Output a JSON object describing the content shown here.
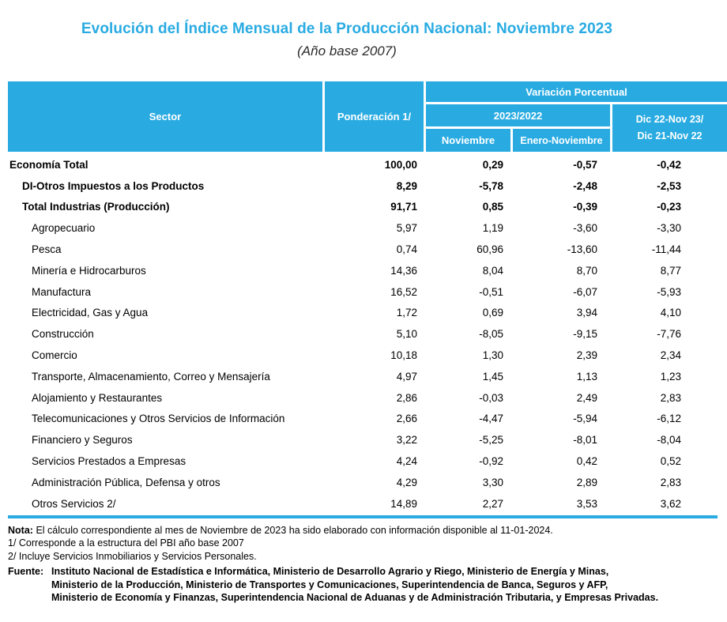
{
  "page": {
    "title": "Evolución del Índice Mensual de la Producción Nacional: Noviembre 2023",
    "subtitle": "(Año base 2007)"
  },
  "colors": {
    "accent": "#29ABE2",
    "header_text": "#FFFFFF",
    "body_text": "#000000"
  },
  "table": {
    "headers": {
      "sector": "Sector",
      "ponderacion": "Ponderación 1/",
      "variacion": "Variación Porcentual",
      "period": "2023/2022",
      "noviembre": "Noviembre",
      "enero_noviembre": "Enero-Noviembre",
      "dic_line1": "Dic 22-Nov 23/",
      "dic_line2": "Dic 21-Nov 22"
    },
    "rows": [
      {
        "sector": "Economía Total",
        "ponderacion": "100,00",
        "noviembre": "0,29",
        "enero_noviembre": "-0,57",
        "dic": "-0,42",
        "bold": true,
        "indent": 0
      },
      {
        "sector": "DI-Otros Impuestos a los Productos",
        "ponderacion": "8,29",
        "noviembre": "-5,78",
        "enero_noviembre": "-2,48",
        "dic": "-2,53",
        "bold": true,
        "indent": 1
      },
      {
        "sector": "Total  Industrias (Producción)",
        "ponderacion": "91,71",
        "noviembre": "0,85",
        "enero_noviembre": "-0,39",
        "dic": "-0,23",
        "bold": true,
        "indent": 1
      },
      {
        "sector": "Agropecuario",
        "ponderacion": "5,97",
        "noviembre": "1,19",
        "enero_noviembre": "-3,60",
        "dic": "-3,30",
        "bold": false,
        "indent": 2
      },
      {
        "sector": "Pesca",
        "ponderacion": "0,74",
        "noviembre": "60,96",
        "enero_noviembre": "-13,60",
        "dic": "-11,44",
        "bold": false,
        "indent": 2
      },
      {
        "sector": "Minería e Hidrocarburos",
        "ponderacion": "14,36",
        "noviembre": "8,04",
        "enero_noviembre": "8,70",
        "dic": "8,77",
        "bold": false,
        "indent": 2
      },
      {
        "sector": "Manufactura",
        "ponderacion": "16,52",
        "noviembre": "-0,51",
        "enero_noviembre": "-6,07",
        "dic": "-5,93",
        "bold": false,
        "indent": 2
      },
      {
        "sector": "Electricidad, Gas y Agua",
        "ponderacion": "1,72",
        "noviembre": "0,69",
        "enero_noviembre": "3,94",
        "dic": "4,10",
        "bold": false,
        "indent": 2
      },
      {
        "sector": "Construcción",
        "ponderacion": "5,10",
        "noviembre": "-8,05",
        "enero_noviembre": "-9,15",
        "dic": "-7,76",
        "bold": false,
        "indent": 2
      },
      {
        "sector": "Comercio",
        "ponderacion": "10,18",
        "noviembre": "1,30",
        "enero_noviembre": "2,39",
        "dic": "2,34",
        "bold": false,
        "indent": 2
      },
      {
        "sector": "Transporte, Almacenamiento, Correo y Mensajería",
        "ponderacion": "4,97",
        "noviembre": "1,45",
        "enero_noviembre": "1,13",
        "dic": "1,23",
        "bold": false,
        "indent": 2
      },
      {
        "sector": "Alojamiento y Restaurantes",
        "ponderacion": "2,86",
        "noviembre": "-0,03",
        "enero_noviembre": "2,49",
        "dic": "2,83",
        "bold": false,
        "indent": 2
      },
      {
        "sector": "Telecomunicaciones y Otros Servicios de Información",
        "ponderacion": "2,66",
        "noviembre": "-4,47",
        "enero_noviembre": "-5,94",
        "dic": "-6,12",
        "bold": false,
        "indent": 2
      },
      {
        "sector": "Financiero y Seguros",
        "ponderacion": "3,22",
        "noviembre": "-5,25",
        "enero_noviembre": "-8,01",
        "dic": "-8,04",
        "bold": false,
        "indent": 2
      },
      {
        "sector": "Servicios Prestados a Empresas",
        "ponderacion": "4,24",
        "noviembre": "-0,92",
        "enero_noviembre": "0,42",
        "dic": "0,52",
        "bold": false,
        "indent": 2
      },
      {
        "sector": "Administración Pública, Defensa y otros",
        "ponderacion": "4,29",
        "noviembre": "3,30",
        "enero_noviembre": "2,89",
        "dic": "2,83",
        "bold": false,
        "indent": 2
      },
      {
        "sector": "Otros Servicios 2/",
        "ponderacion": "14,89",
        "noviembre": "2,27",
        "enero_noviembre": "3,53",
        "dic": "3,62",
        "bold": false,
        "indent": 2
      }
    ]
  },
  "notes": {
    "nota_label": "Nota:",
    "nota_text": "El cálculo correspondiente al mes de Noviembre de 2023 ha sido elaborado con información disponible al 11-01-2024.",
    "footnote1": "1/ Corresponde a la estructura del PBI año base 2007",
    "footnote2": "2/ Incluye Servicios Inmobiliarios y Servicios Personales.",
    "fuente_label": "Fuente:",
    "fuente_line1": "Instituto Nacional de Estadística e Informática, Ministerio de Desarrollo Agrario y Riego, Ministerio de Energía y Minas,",
    "fuente_line2": "Ministerio de la Producción, Ministerio de Transportes y Comunicaciones, Superintendencia de Banca, Seguros y AFP,",
    "fuente_line3": "Ministerio de Economía y Finanzas, Superintendencia Nacional de Aduanas y de Administración Tributaria, y Empresas Privadas."
  }
}
